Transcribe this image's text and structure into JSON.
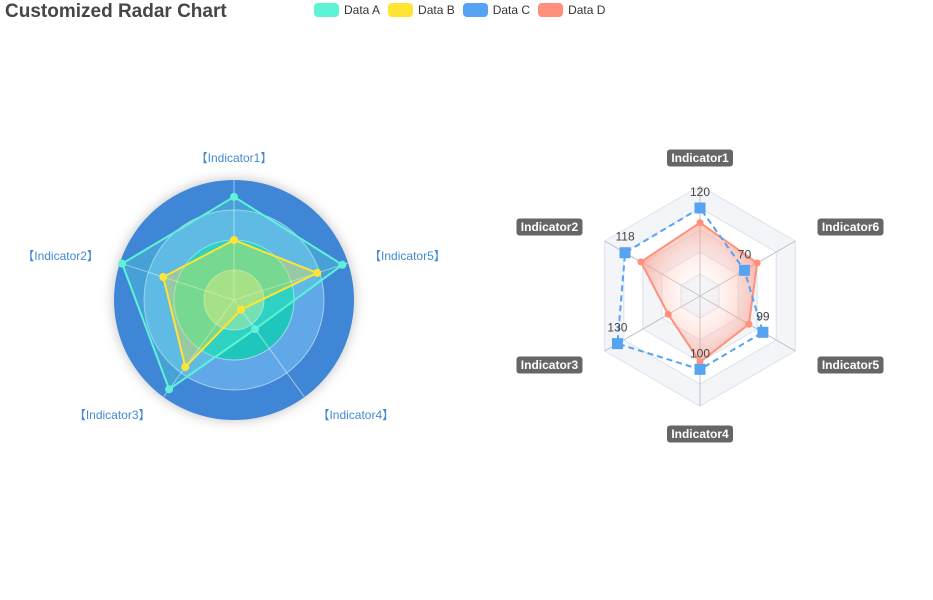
{
  "title": "Customized Radar Chart",
  "legend": [
    {
      "label": "Data A",
      "color": "#5ef3d6"
    },
    {
      "label": "Data B",
      "color": "#ffe434"
    },
    {
      "label": "Data C",
      "color": "#56a3f1"
    },
    {
      "label": "Data D",
      "color": "#ff917c"
    }
  ],
  "chart_data": [
    {
      "type": "radar",
      "shape": "circle",
      "indicators": [
        "【Indicator1】",
        "【Indicator2】",
        "【Indicator3】",
        "【Indicator4】",
        "【Indicator5】"
      ],
      "max": 100,
      "series": [
        {
          "name": "Data A",
          "values": [
            86,
            98,
            92,
            30,
            95
          ],
          "color": "#5ef3d6"
        },
        {
          "name": "Data B",
          "values": [
            50,
            62,
            69,
            10,
            73
          ],
          "color": "#ffe434"
        }
      ]
    },
    {
      "type": "radar",
      "shape": "polygon",
      "indicators": [
        "Indicator1",
        "Indicator2",
        "Indicator3",
        "Indicator4",
        "Indicator5",
        "Indicator6"
      ],
      "max": 150,
      "series": [
        {
          "name": "Data C",
          "values": [
            120,
            118,
            130,
            100,
            99,
            70
          ],
          "color": "#56a3f1",
          "labels": [
            "120",
            "118",
            "130",
            "100",
            "99",
            "70"
          ]
        },
        {
          "name": "Data D",
          "values": [
            100,
            93,
            50,
            90,
            77,
            90
          ],
          "color": "#ff917c"
        }
      ]
    }
  ]
}
